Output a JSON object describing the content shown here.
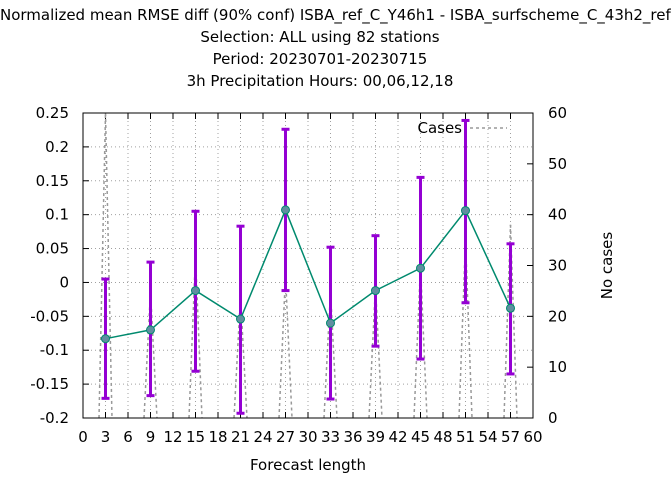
{
  "title": {
    "line1": "Normalized mean RMSE diff (90% conf) ISBA_ref_C_Y46h1 - ISBA_surfscheme_C_43h2_ref",
    "line2": "Selection: ALL using    82 stations",
    "line3": "Period: 20230701-20230715",
    "line4": "3h Precipitation   Hours:  00,06,12,18"
  },
  "chart_data": {
    "type": "line",
    "xlabel": "Forecast length",
    "ylabel_left": "",
    "ylabel_right": "No cases",
    "xlim": [
      0,
      60
    ],
    "ylim_left": [
      -0.2,
      0.25
    ],
    "ylim_right": [
      0,
      60
    ],
    "x_ticks": [
      "0",
      "3",
      "6",
      "9",
      "12",
      "15",
      "18",
      "21",
      "24",
      "27",
      "30",
      "33",
      "36",
      "39",
      "42",
      "45",
      "48",
      "51",
      "54",
      "57",
      "60"
    ],
    "y_ticks_left": [
      "-0.2",
      "-0.15",
      "-0.1",
      "-0.05",
      "0",
      "0.05",
      "0.1",
      "0.15",
      "0.2",
      "0.25"
    ],
    "y_ticks_right": [
      "0",
      "10",
      "20",
      "30",
      "40",
      "50",
      "60"
    ],
    "grid": true,
    "legend": {
      "entry": "Cases",
      "position": "top-right"
    },
    "series": [
      {
        "name": "",
        "color": "#008a6e",
        "marker_color": "#5f8fa0",
        "x": [
          3,
          9,
          15,
          21,
          27,
          33,
          39,
          45,
          51,
          57
        ],
        "values": [
          -0.083,
          -0.07,
          -0.012,
          -0.054,
          0.107,
          -0.06,
          -0.012,
          0.021,
          0.106,
          -0.038
        ],
        "error_low": [
          -0.171,
          -0.167,
          -0.131,
          -0.193,
          -0.012,
          -0.172,
          -0.094,
          -0.113,
          -0.03,
          -0.135
        ],
        "error_high": [
          0.005,
          0.03,
          0.105,
          0.083,
          0.226,
          0.052,
          0.069,
          0.155,
          0.239,
          0.057
        ],
        "error_color": "#9400d3"
      },
      {
        "name": "Cases",
        "color": "#999999",
        "axis": "right",
        "x": [
          3,
          9,
          15,
          21,
          27,
          33,
          39,
          45,
          51,
          57
        ],
        "values": [
          60,
          25,
          32,
          24,
          28,
          25,
          26,
          30,
          35,
          38
        ]
      }
    ]
  }
}
